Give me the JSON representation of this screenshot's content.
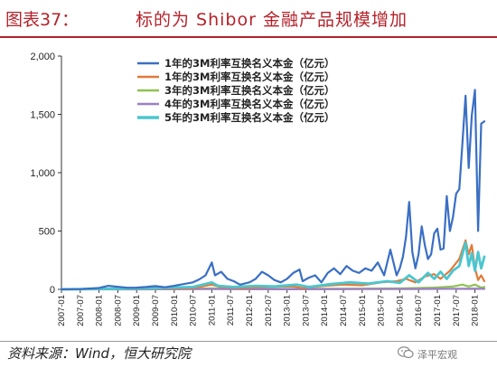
{
  "header": {
    "figure_label": "图表37：",
    "title": "标的为 Shibor 金融产品规模增加"
  },
  "footer": {
    "source": "资料来源：Wind，恒大研究院",
    "watermark": "泽平宏观"
  },
  "chart_data": {
    "type": "line",
    "title": "标的为 Shibor 金融产品规模增加",
    "xlabel": "",
    "ylabel": "",
    "ylim": [
      0,
      2000
    ],
    "yticks": [
      0,
      500,
      1000,
      1500,
      2000
    ],
    "ytick_labels": [
      "0",
      "500",
      "1,000",
      "1,500",
      "2,000"
    ],
    "xlim": [
      "2007-01",
      "2018-04"
    ],
    "xticks": [
      "2007-01",
      "2007-07",
      "2008-01",
      "2008-07",
      "2009-01",
      "2009-07",
      "2010-01",
      "2010-07",
      "2011-01",
      "2011-07",
      "2012-01",
      "2012-07",
      "2013-01",
      "2013-07",
      "2014-01",
      "2014-07",
      "2015-01",
      "2015-07",
      "2016-01",
      "2016-07",
      "2017-01",
      "2017-07",
      "2018-01"
    ],
    "grid": false,
    "legend_position": "top-center",
    "series": [
      {
        "name": "1年的3M利率互换名义本金（亿元）",
        "color": "#3a6fc4",
        "points": [
          [
            "2007-01",
            0
          ],
          [
            "2007-07",
            2
          ],
          [
            "2008-01",
            12
          ],
          [
            "2008-04",
            30
          ],
          [
            "2008-07",
            22
          ],
          [
            "2008-10",
            14
          ],
          [
            "2009-01",
            15
          ],
          [
            "2009-04",
            20
          ],
          [
            "2009-07",
            28
          ],
          [
            "2009-10",
            18
          ],
          [
            "2010-01",
            30
          ],
          [
            "2010-04",
            45
          ],
          [
            "2010-07",
            60
          ],
          [
            "2010-09",
            85
          ],
          [
            "2010-11",
            120
          ],
          [
            "2011-01",
            230
          ],
          [
            "2011-02",
            120
          ],
          [
            "2011-04",
            150
          ],
          [
            "2011-06",
            90
          ],
          [
            "2011-08",
            70
          ],
          [
            "2011-10",
            40
          ],
          [
            "2012-01",
            60
          ],
          [
            "2012-03",
            90
          ],
          [
            "2012-05",
            150
          ],
          [
            "2012-07",
            120
          ],
          [
            "2012-09",
            80
          ],
          [
            "2012-11",
            60
          ],
          [
            "2013-01",
            90
          ],
          [
            "2013-03",
            140
          ],
          [
            "2013-05",
            170
          ],
          [
            "2013-06",
            70
          ],
          [
            "2013-08",
            100
          ],
          [
            "2013-10",
            120
          ],
          [
            "2013-12",
            60
          ],
          [
            "2014-02",
            140
          ],
          [
            "2014-04",
            180
          ],
          [
            "2014-06",
            130
          ],
          [
            "2014-08",
            200
          ],
          [
            "2014-10",
            160
          ],
          [
            "2014-12",
            140
          ],
          [
            "2015-02",
            180
          ],
          [
            "2015-04",
            160
          ],
          [
            "2015-06",
            230
          ],
          [
            "2015-08",
            120
          ],
          [
            "2015-10",
            340
          ],
          [
            "2015-12",
            120
          ],
          [
            "2016-01",
            180
          ],
          [
            "2016-02",
            280
          ],
          [
            "2016-03",
            450
          ],
          [
            "2016-04",
            750
          ],
          [
            "2016-05",
            320
          ],
          [
            "2016-06",
            180
          ],
          [
            "2016-07",
            300
          ],
          [
            "2016-08",
            540
          ],
          [
            "2016-09",
            380
          ],
          [
            "2016-10",
            260
          ],
          [
            "2016-11",
            300
          ],
          [
            "2016-12",
            480
          ],
          [
            "2017-01",
            520
          ],
          [
            "2017-02",
            340
          ],
          [
            "2017-03",
            350
          ],
          [
            "2017-04",
            800
          ],
          [
            "2017-05",
            500
          ],
          [
            "2017-06",
            620
          ],
          [
            "2017-07",
            820
          ],
          [
            "2017-08",
            860
          ],
          [
            "2017-09",
            1250
          ],
          [
            "2017-10",
            1660
          ],
          [
            "2017-11",
            1040
          ],
          [
            "2017-12",
            1490
          ],
          [
            "2018-01",
            1710
          ],
          [
            "2018-02",
            500
          ],
          [
            "2018-03",
            1420
          ],
          [
            "2018-04",
            1440
          ]
        ]
      },
      {
        "name": "1年的3M利率互换名义本金（亿元）",
        "color": "#e07b39",
        "points": [
          [
            "2007-01",
            0
          ],
          [
            "2008-01",
            3
          ],
          [
            "2009-01",
            4
          ],
          [
            "2010-01",
            8
          ],
          [
            "2010-07",
            10
          ],
          [
            "2011-01",
            40
          ],
          [
            "2011-04",
            18
          ],
          [
            "2011-10",
            12
          ],
          [
            "2012-06",
            20
          ],
          [
            "2013-03",
            25
          ],
          [
            "2013-06",
            10
          ],
          [
            "2014-01",
            30
          ],
          [
            "2014-07",
            40
          ],
          [
            "2015-01",
            35
          ],
          [
            "2015-07",
            60
          ],
          [
            "2015-12",
            70
          ],
          [
            "2016-03",
            90
          ],
          [
            "2016-06",
            60
          ],
          [
            "2016-09",
            110
          ],
          [
            "2016-12",
            130
          ],
          [
            "2017-02",
            90
          ],
          [
            "2017-05",
            160
          ],
          [
            "2017-08",
            260
          ],
          [
            "2017-10",
            420
          ],
          [
            "2017-11",
            300
          ],
          [
            "2017-12",
            380
          ],
          [
            "2018-01",
            180
          ],
          [
            "2018-02",
            80
          ],
          [
            "2018-03",
            120
          ],
          [
            "2018-04",
            70
          ]
        ]
      },
      {
        "name": "3年的3M利率互换名义本金（亿元）",
        "color": "#8fc34f",
        "points": [
          [
            "2007-01",
            0
          ],
          [
            "2008-01",
            1
          ],
          [
            "2009-01",
            1
          ],
          [
            "2010-01",
            2
          ],
          [
            "2011-01",
            8
          ],
          [
            "2012-01",
            3
          ],
          [
            "2013-01",
            4
          ],
          [
            "2014-01",
            5
          ],
          [
            "2015-01",
            6
          ],
          [
            "2016-01",
            8
          ],
          [
            "2016-12",
            15
          ],
          [
            "2017-06",
            25
          ],
          [
            "2017-09",
            40
          ],
          [
            "2017-11",
            25
          ],
          [
            "2018-01",
            40
          ],
          [
            "2018-03",
            15
          ],
          [
            "2018-04",
            20
          ]
        ]
      },
      {
        "name": "4年的3M利率互换名义本金（亿元）",
        "color": "#9b7fc4",
        "points": [
          [
            "2007-01",
            0
          ],
          [
            "2009-01",
            0
          ],
          [
            "2011-01",
            2
          ],
          [
            "2013-01",
            1
          ],
          [
            "2015-01",
            2
          ],
          [
            "2016-06",
            3
          ],
          [
            "2017-06",
            5
          ],
          [
            "2018-01",
            6
          ],
          [
            "2018-04",
            4
          ]
        ]
      },
      {
        "name": "5年的3M利率互换名义本金（亿元）",
        "color": "#4bc6cf",
        "points": [
          [
            "2007-01",
            0
          ],
          [
            "2008-01",
            4
          ],
          [
            "2008-10",
            6
          ],
          [
            "2009-07",
            10
          ],
          [
            "2010-07",
            20
          ],
          [
            "2011-01",
            60
          ],
          [
            "2011-03",
            30
          ],
          [
            "2011-08",
            20
          ],
          [
            "2012-03",
            30
          ],
          [
            "2012-09",
            25
          ],
          [
            "2013-04",
            40
          ],
          [
            "2013-08",
            20
          ],
          [
            "2014-03",
            45
          ],
          [
            "2014-09",
            60
          ],
          [
            "2015-03",
            50
          ],
          [
            "2015-09",
            70
          ],
          [
            "2016-01",
            55
          ],
          [
            "2016-04",
            120
          ],
          [
            "2016-07",
            60
          ],
          [
            "2016-10",
            140
          ],
          [
            "2016-12",
            90
          ],
          [
            "2017-02",
            150
          ],
          [
            "2017-04",
            90
          ],
          [
            "2017-06",
            160
          ],
          [
            "2017-08",
            200
          ],
          [
            "2017-10",
            400
          ],
          [
            "2017-11",
            200
          ],
          [
            "2017-12",
            310
          ],
          [
            "2018-01",
            160
          ],
          [
            "2018-02",
            320
          ],
          [
            "2018-03",
            180
          ],
          [
            "2018-04",
            280
          ]
        ]
      }
    ]
  }
}
